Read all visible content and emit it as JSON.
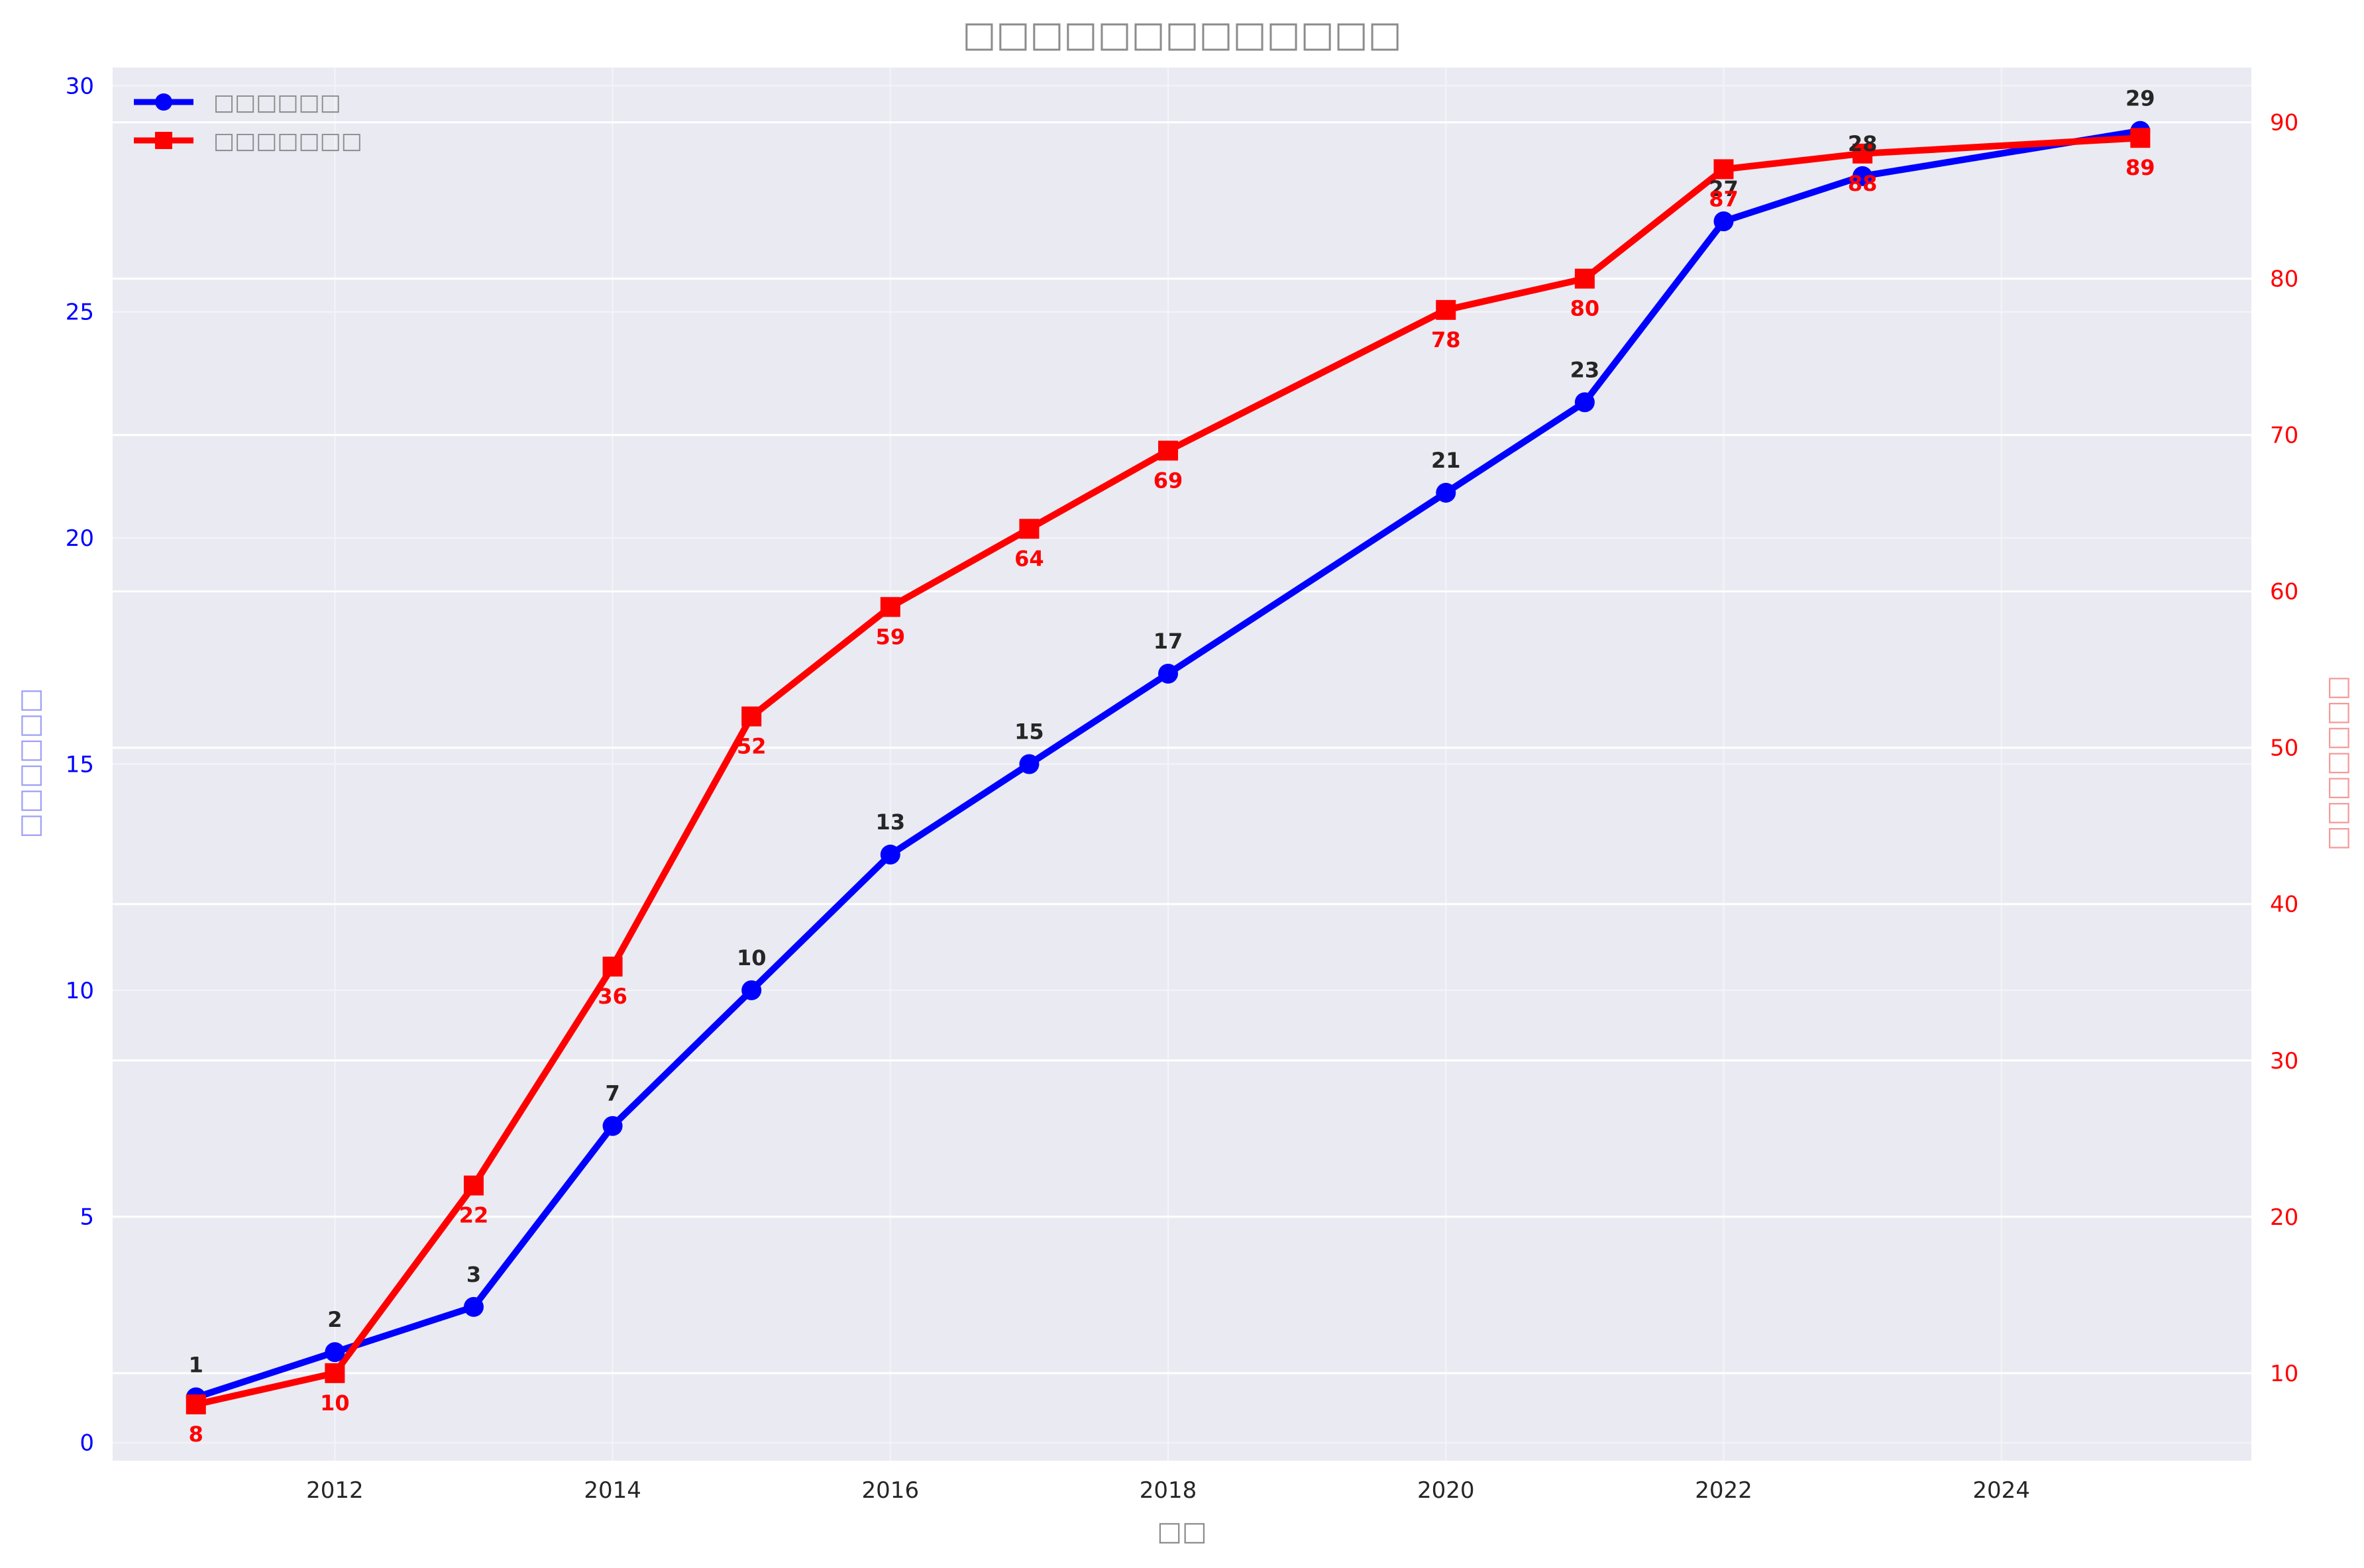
{
  "chart_data": {
    "type": "line",
    "title": "□□□□□□□□□□□□□",
    "xlabel": "□□",
    "ylabel_left": "□□□□□□",
    "ylabel_right": "□□□□□□□",
    "x_ticks": [
      2012,
      2014,
      2016,
      2018,
      2020,
      2022,
      2024
    ],
    "x_range": [
      2010.4,
      2025.8
    ],
    "y_left_range": [
      -0.4,
      30.4
    ],
    "y_left_ticks": [
      0,
      5,
      10,
      15,
      20,
      25,
      30
    ],
    "y_right_range": [
      4.4,
      93.5
    ],
    "y_right_ticks": [
      10,
      20,
      30,
      40,
      50,
      60,
      70,
      80,
      90
    ],
    "grid": true,
    "legend_position": "top-left",
    "colors": {
      "series1": "#0000ff",
      "series2": "#ff0000",
      "plot_bg": "#eaeaf2",
      "muted_text": "#8c8c8c"
    },
    "series": [
      {
        "name": "□□□□□□",
        "axis": "left",
        "marker": "circle",
        "x": [
          2011,
          2012,
          2013,
          2014,
          2015,
          2016,
          2017,
          2018,
          2020,
          2021,
          2022,
          2023,
          2025
        ],
        "values": [
          1,
          2,
          3,
          7,
          10,
          13,
          15,
          17,
          21,
          23,
          27,
          28,
          29
        ]
      },
      {
        "name": "□□□□□□□",
        "axis": "right",
        "marker": "square",
        "x": [
          2011,
          2012,
          2013,
          2014,
          2015,
          2016,
          2017,
          2018,
          2020,
          2021,
          2022,
          2023,
          2025
        ],
        "values": [
          8,
          10,
          22,
          36,
          52,
          59,
          64,
          69,
          78,
          80,
          87,
          88,
          89
        ]
      }
    ]
  }
}
